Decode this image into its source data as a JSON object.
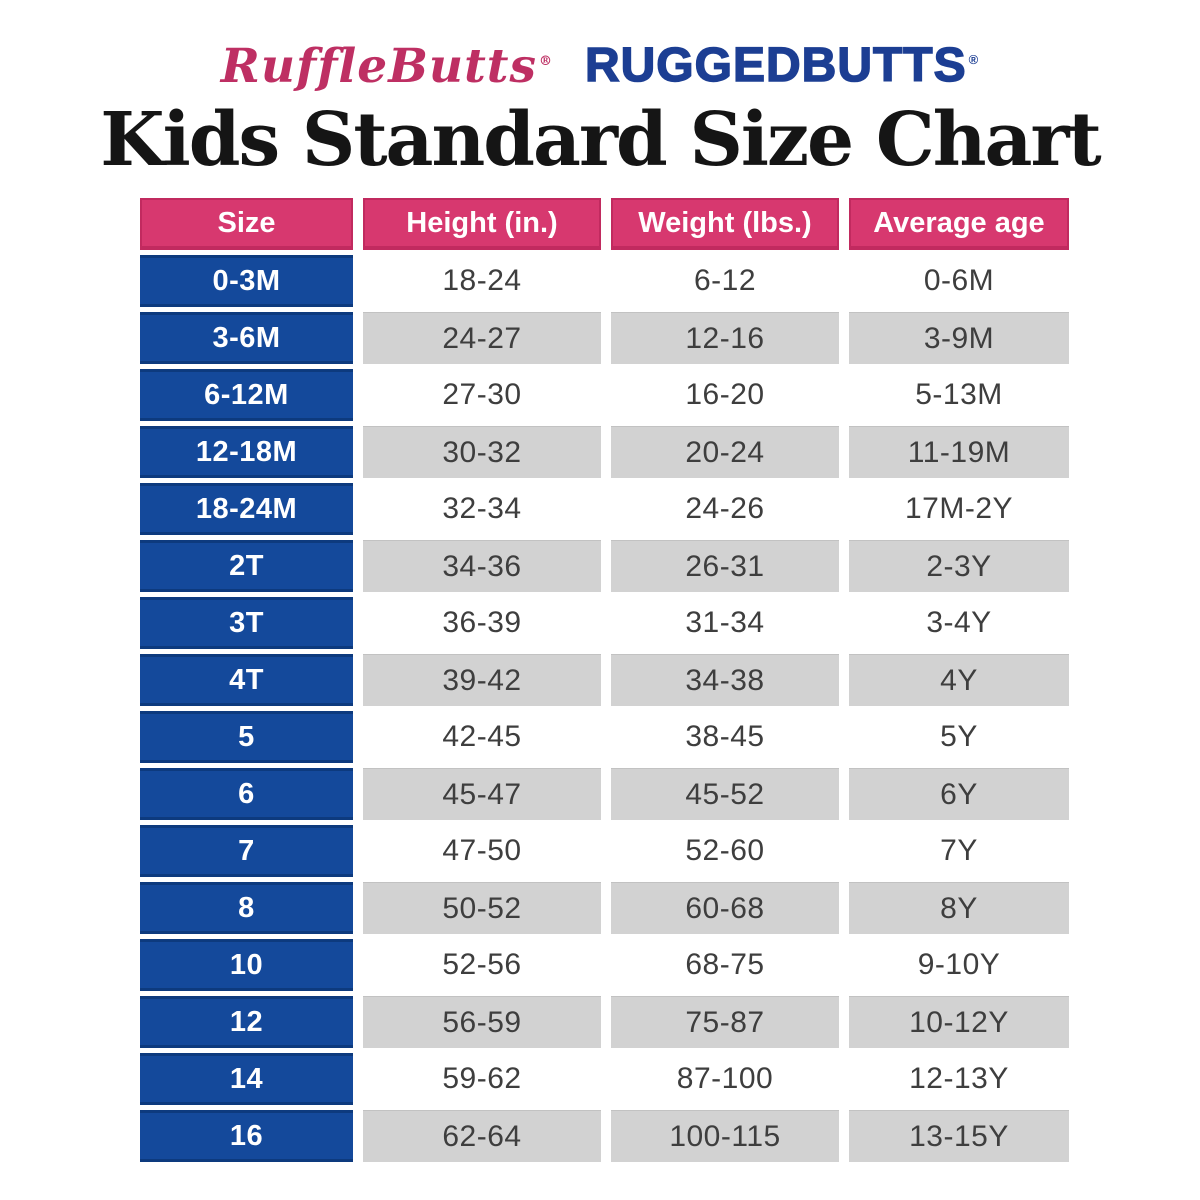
{
  "title": "Kids Standard Size Chart",
  "brand": {
    "rufflebutts": "RuffleButts",
    "rufflebutts_reg": "®",
    "ruggedbutts": "RUGGEDBUTTS",
    "ruggedbutts_reg": "®"
  },
  "colors": {
    "header_bg": "#D7386F",
    "header_border": "#C12A5F",
    "size_col_bg": "#14499B",
    "size_col_border": "#0D3A7E",
    "row_even_bg": "#FFFFFF",
    "row_odd_bg": "#D2D2D2",
    "body_text": "#3E3E3E",
    "title_text": "#151515",
    "rufflebutts_pink": "#BE2F63",
    "ruggedbutts_blue": "#1C3E93"
  },
  "chart_data": {
    "type": "table",
    "title": "Kids Standard Size Chart",
    "columns": [
      "Size",
      "Height (in.)",
      "Weight (lbs.)",
      "Average age"
    ],
    "rows": [
      [
        "0-3M",
        "18-24",
        "6-12",
        "0-6M"
      ],
      [
        "3-6M",
        "24-27",
        "12-16",
        "3-9M"
      ],
      [
        "6-12M",
        "27-30",
        "16-20",
        "5-13M"
      ],
      [
        "12-18M",
        "30-32",
        "20-24",
        "11-19M"
      ],
      [
        "18-24M",
        "32-34",
        "24-26",
        "17M-2Y"
      ],
      [
        "2T",
        "34-36",
        "26-31",
        "2-3Y"
      ],
      [
        "3T",
        "36-39",
        "31-34",
        "3-4Y"
      ],
      [
        "4T",
        "39-42",
        "34-38",
        "4Y"
      ],
      [
        "5",
        "42-45",
        "38-45",
        "5Y"
      ],
      [
        "6",
        "45-47",
        "45-52",
        "6Y"
      ],
      [
        "7",
        "47-50",
        "52-60",
        "7Y"
      ],
      [
        "8",
        "50-52",
        "60-68",
        "8Y"
      ],
      [
        "10",
        "52-56",
        "68-75",
        "9-10Y"
      ],
      [
        "12",
        "56-59",
        "75-87",
        "10-12Y"
      ],
      [
        "14",
        "59-62",
        "87-100",
        "12-13Y"
      ],
      [
        "16",
        "62-64",
        "100-115",
        "13-15Y"
      ]
    ],
    "layout": {
      "header_style": "pink-banner",
      "size_column_style": "blue-banner",
      "alternating_row_shading": true,
      "first_data_row_shaded": false
    }
  }
}
